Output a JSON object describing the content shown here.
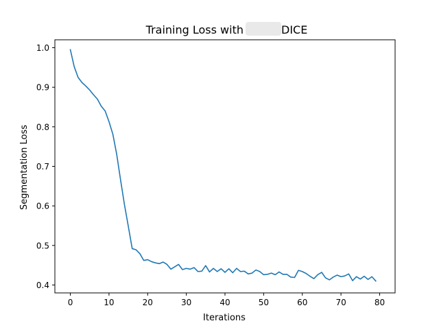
{
  "chart_data": {
    "type": "line",
    "title": "Training Loss with DICE",
    "title_parts": {
      "before": "Training Loss with",
      "after": "DICE"
    },
    "xlabel": "Iterations",
    "ylabel": "Segmentation Loss",
    "xlim": [
      -4,
      84
    ],
    "ylim": [
      0.38,
      1.02
    ],
    "xticks": [
      0,
      10,
      20,
      30,
      40,
      50,
      60,
      70,
      80
    ],
    "yticks": [
      0.4,
      0.5,
      0.6,
      0.7,
      0.8,
      0.9,
      1.0
    ],
    "ytick_labels": [
      "0.4",
      "0.5",
      "0.6",
      "0.7",
      "0.8",
      "0.9",
      "1.0"
    ],
    "grid": false,
    "series": [
      {
        "color": "#1f77b4",
        "x": [
          0,
          1,
          2,
          3,
          4,
          5,
          6,
          7,
          8,
          9,
          10,
          11,
          12,
          13,
          14,
          15,
          16,
          17,
          18,
          19,
          20,
          21,
          22,
          23,
          24,
          25,
          26,
          27,
          28,
          29,
          30,
          31,
          32,
          33,
          34,
          35,
          36,
          37,
          38,
          39,
          40,
          41,
          42,
          43,
          44,
          45,
          46,
          47,
          48,
          49,
          50,
          51,
          52,
          53,
          54,
          55,
          56,
          57,
          58,
          59,
          60,
          61,
          62,
          63,
          64,
          65,
          66,
          67,
          68,
          69,
          70,
          71,
          72,
          73,
          74,
          75,
          76,
          77,
          78,
          79
        ],
        "values": [
          0.995,
          0.952,
          0.925,
          0.912,
          0.903,
          0.893,
          0.881,
          0.87,
          0.852,
          0.84,
          0.813,
          0.781,
          0.73,
          0.665,
          0.603,
          0.548,
          0.492,
          0.489,
          0.479,
          0.462,
          0.464,
          0.459,
          0.456,
          0.454,
          0.458,
          0.452,
          0.44,
          0.446,
          0.452,
          0.439,
          0.442,
          0.44,
          0.444,
          0.434,
          0.435,
          0.449,
          0.433,
          0.442,
          0.434,
          0.441,
          0.432,
          0.441,
          0.431,
          0.442,
          0.434,
          0.435,
          0.428,
          0.43,
          0.438,
          0.434,
          0.426,
          0.427,
          0.43,
          0.426,
          0.433,
          0.427,
          0.427,
          0.42,
          0.419,
          0.437,
          0.434,
          0.429,
          0.422,
          0.416,
          0.426,
          0.432,
          0.418,
          0.413,
          0.42,
          0.425,
          0.421,
          0.423,
          0.428,
          0.411,
          0.421,
          0.415,
          0.422,
          0.414,
          0.421,
          0.41
        ]
      }
    ]
  }
}
